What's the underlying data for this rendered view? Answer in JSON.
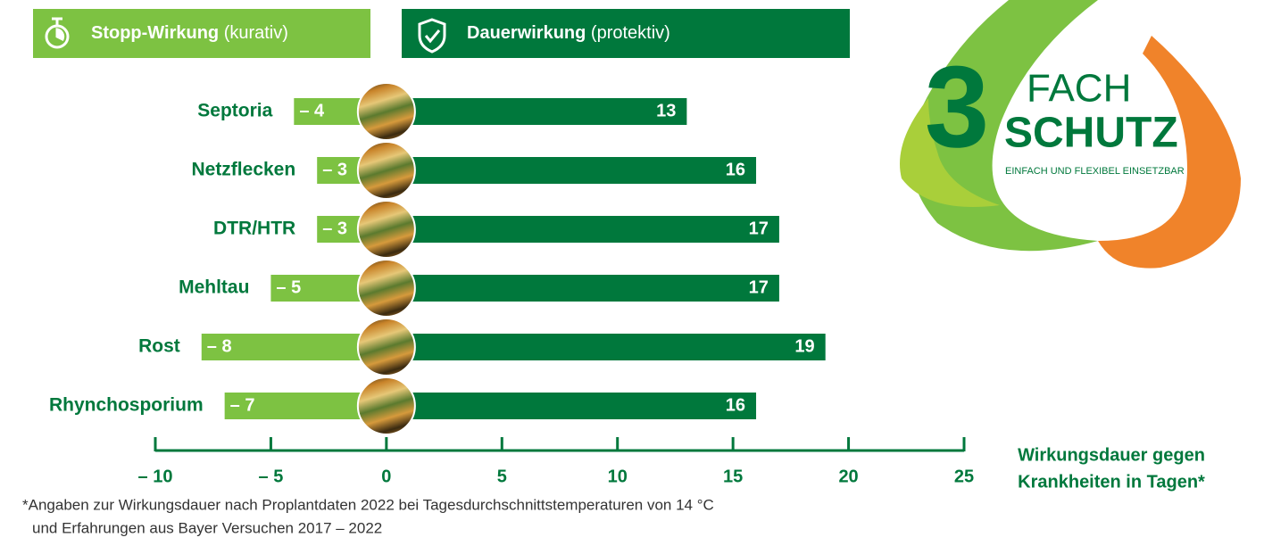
{
  "chart_data": {
    "type": "diverging-bar",
    "categories": [
      "Septoria",
      "Netzflecken",
      "DTR/HTR",
      "Mehltau",
      "Rost",
      "Rhynchosporium"
    ],
    "series": [
      {
        "name": "Stopp-Wirkung",
        "qualifier": "(kurativ)",
        "color": "#7dc242",
        "values": [
          -4,
          -3,
          -3,
          -5,
          -8,
          -7
        ],
        "value_labels": [
          "– 4",
          "– 3",
          "– 3",
          "– 5",
          "– 8",
          "– 7"
        ]
      },
      {
        "name": "Dauerwirkung",
        "qualifier": "(protektiv)",
        "color": "#00783c",
        "values": [
          13,
          16,
          17,
          17,
          19,
          16
        ]
      }
    ],
    "xlim": [
      -10,
      25
    ],
    "xticks": [
      {
        "value": -10,
        "label": "– 10"
      },
      {
        "value": -5,
        "label": "– 5"
      },
      0,
      5,
      10,
      15,
      20,
      25
    ],
    "x_label": [
      "Wirkungsdauer gegen",
      "Krankheiten in Tagen*"
    ],
    "footnote": [
      "*Angaben zur Wirkungsdauer nach Proplantdaten 2022 bei Tagesdurchschnittstemperaturen von 14 °C",
      "und Erfahrungen aus Bayer Versuchen 2017 – 2022"
    ]
  },
  "logo": {
    "numeral": "3",
    "word1": "FACH",
    "word2": "SCHUTZ",
    "tagline": "EINFACH UND FLEXIBEL EINSETZBAR"
  }
}
